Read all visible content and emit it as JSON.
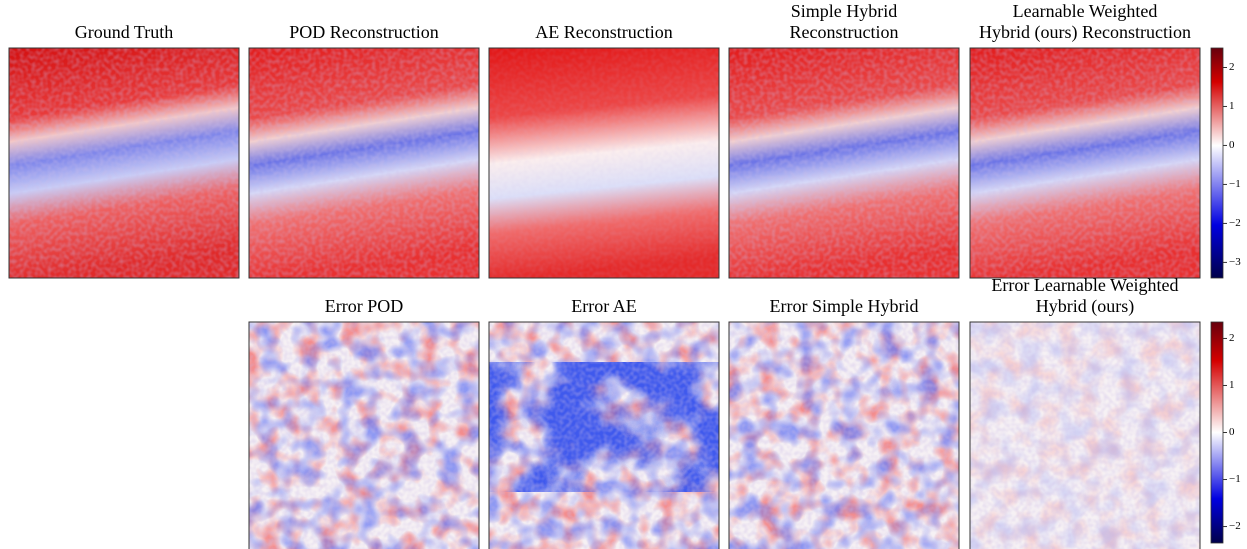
{
  "panels": [
    {
      "title": [
        "Ground Truth"
      ]
    },
    {
      "title": [
        "POD Reconstruction"
      ]
    },
    {
      "title": [
        "AE Reconstruction"
      ]
    },
    {
      "title": [
        "Simple Hybrid",
        "Reconstruction"
      ]
    },
    {
      "title": [
        "Learnable Weighted",
        "Hybrid (ours) Reconstruction"
      ]
    },
    {
      "title": [
        "Error POD"
      ]
    },
    {
      "title": [
        "Error AE"
      ]
    },
    {
      "title": [
        "Error Simple Hybrid"
      ]
    },
    {
      "title": [
        "Error Learnable Weighted",
        "Hybrid (ours)"
      ]
    }
  ],
  "colorbars": [
    {
      "lim": [
        -3.4,
        2.5
      ],
      "ticks": [
        2,
        1,
        0,
        {
          "value": -1,
          "label": "−1"
        },
        {
          "value": -2,
          "label": "−2"
        },
        {
          "value": -3,
          "label": "−3"
        }
      ]
    },
    {
      "lim": [
        -2.35,
        2.35
      ],
      "ticks": [
        2,
        1,
        0,
        {
          "value": -1,
          "label": "−1"
        },
        {
          "value": -2,
          "label": "−2"
        }
      ]
    }
  ]
}
